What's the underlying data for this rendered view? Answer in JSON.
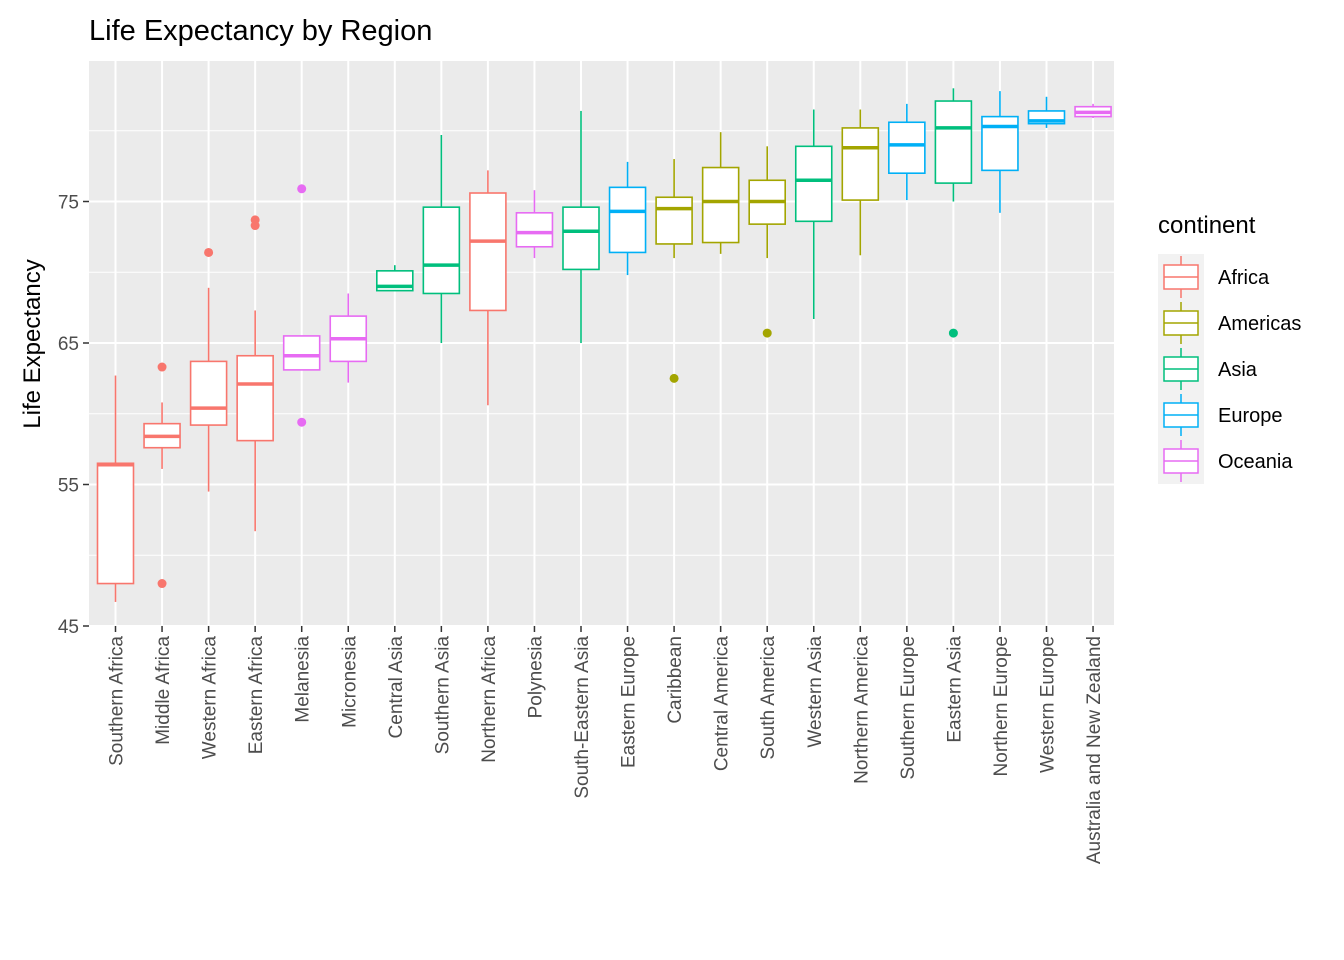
{
  "chart_data": {
    "type": "boxplot",
    "title": "Life Expectancy by Region",
    "xlabel": "",
    "ylabel": "Life Expectancy",
    "ylim": [
      45,
      85
    ],
    "yticks": [
      45,
      55,
      65,
      75
    ],
    "grid": true,
    "legend_title": "continent",
    "legend_position": "right",
    "continent_colors": {
      "Africa": "#F8766D",
      "Americas": "#A3A500",
      "Asia": "#00BF7D",
      "Europe": "#00B0F6",
      "Oceania": "#E76BF3"
    },
    "legend": [
      "Africa",
      "Americas",
      "Asia",
      "Europe",
      "Oceania"
    ],
    "categories": [
      "Southern Africa",
      "Middle Africa",
      "Western Africa",
      "Eastern Africa",
      "Melanesia",
      "Micronesia",
      "Central Asia",
      "Southern Asia",
      "Northern Africa",
      "Polynesia",
      "South-Eastern Asia",
      "Eastern Europe",
      "Caribbean",
      "Central America",
      "South America",
      "Western Asia",
      "Northern America",
      "Southern Europe",
      "Eastern Asia",
      "Northern Europe",
      "Western Europe",
      "Australia and New Zealand"
    ],
    "boxes": [
      {
        "region": "Southern Africa",
        "continent": "Africa",
        "min": 46.7,
        "q1": 48.0,
        "median": 56.4,
        "q3": 56.5,
        "max": 62.7,
        "outliers": []
      },
      {
        "region": "Middle Africa",
        "continent": "Africa",
        "min": 56.1,
        "q1": 57.6,
        "median": 58.4,
        "q3": 59.3,
        "max": 60.8,
        "outliers": [
          63.3,
          48.0
        ]
      },
      {
        "region": "Western Africa",
        "continent": "Africa",
        "min": 54.5,
        "q1": 59.2,
        "median": 60.4,
        "q3": 63.7,
        "max": 68.9,
        "outliers": [
          71.4
        ]
      },
      {
        "region": "Eastern Africa",
        "continent": "Africa",
        "min": 51.7,
        "q1": 58.1,
        "median": 62.1,
        "q3": 64.1,
        "max": 67.3,
        "outliers": [
          73.7,
          73.3
        ]
      },
      {
        "region": "Melanesia",
        "continent": "Oceania",
        "min": 63.1,
        "q1": 63.1,
        "median": 64.1,
        "q3": 65.5,
        "max": 65.5,
        "outliers": [
          75.9,
          59.4
        ]
      },
      {
        "region": "Micronesia",
        "continent": "Oceania",
        "min": 62.2,
        "q1": 63.7,
        "median": 65.3,
        "q3": 66.9,
        "max": 68.5,
        "outliers": []
      },
      {
        "region": "Central Asia",
        "continent": "Asia",
        "min": 68.7,
        "q1": 68.7,
        "median": 69.0,
        "q3": 70.1,
        "max": 70.5,
        "outliers": []
      },
      {
        "region": "Southern Asia",
        "continent": "Asia",
        "min": 65.0,
        "q1": 68.5,
        "median": 70.5,
        "q3": 74.6,
        "max": 79.7,
        "outliers": []
      },
      {
        "region": "Northern Africa",
        "continent": "Africa",
        "min": 60.6,
        "q1": 67.3,
        "median": 72.2,
        "q3": 75.6,
        "max": 77.2,
        "outliers": []
      },
      {
        "region": "Polynesia",
        "continent": "Oceania",
        "min": 71.0,
        "q1": 71.8,
        "median": 72.8,
        "q3": 74.2,
        "max": 75.8,
        "outliers": []
      },
      {
        "region": "South-Eastern Asia",
        "continent": "Asia",
        "min": 65.0,
        "q1": 70.2,
        "median": 72.9,
        "q3": 74.6,
        "max": 81.4,
        "outliers": []
      },
      {
        "region": "Eastern Europe",
        "continent": "Europe",
        "min": 69.8,
        "q1": 71.4,
        "median": 74.3,
        "q3": 76.0,
        "max": 77.8,
        "outliers": []
      },
      {
        "region": "Caribbean",
        "continent": "Americas",
        "min": 71.0,
        "q1": 72.0,
        "median": 74.5,
        "q3": 75.3,
        "max": 78.0,
        "outliers": [
          62.5
        ]
      },
      {
        "region": "Central America",
        "continent": "Americas",
        "min": 71.3,
        "q1": 72.1,
        "median": 75.0,
        "q3": 77.4,
        "max": 79.9,
        "outliers": []
      },
      {
        "region": "South America",
        "continent": "Americas",
        "min": 71.0,
        "q1": 73.4,
        "median": 75.0,
        "q3": 76.5,
        "max": 78.9,
        "outliers": [
          65.7
        ]
      },
      {
        "region": "Western Asia",
        "continent": "Asia",
        "min": 66.7,
        "q1": 73.6,
        "median": 76.5,
        "q3": 78.9,
        "max": 81.5,
        "outliers": []
      },
      {
        "region": "Northern America",
        "continent": "Americas",
        "min": 71.2,
        "q1": 75.1,
        "median": 78.8,
        "q3": 80.2,
        "max": 81.5,
        "outliers": []
      },
      {
        "region": "Southern Europe",
        "continent": "Europe",
        "min": 75.1,
        "q1": 77.0,
        "median": 79.0,
        "q3": 80.6,
        "max": 81.9,
        "outliers": []
      },
      {
        "region": "Eastern Asia",
        "continent": "Asia",
        "min": 75.0,
        "q1": 76.3,
        "median": 80.2,
        "q3": 82.1,
        "max": 83.0,
        "outliers": [
          65.7
        ]
      },
      {
        "region": "Northern Europe",
        "continent": "Europe",
        "min": 74.2,
        "q1": 77.2,
        "median": 80.3,
        "q3": 81.0,
        "max": 82.8,
        "outliers": []
      },
      {
        "region": "Western Europe",
        "continent": "Europe",
        "min": 80.2,
        "q1": 80.5,
        "median": 80.7,
        "q3": 81.4,
        "max": 82.4,
        "outliers": []
      },
      {
        "region": "Australia and New Zealand",
        "continent": "Oceania",
        "min": 80.9,
        "q1": 81.0,
        "median": 81.3,
        "q3": 81.7,
        "max": 81.9,
        "outliers": []
      }
    ]
  }
}
